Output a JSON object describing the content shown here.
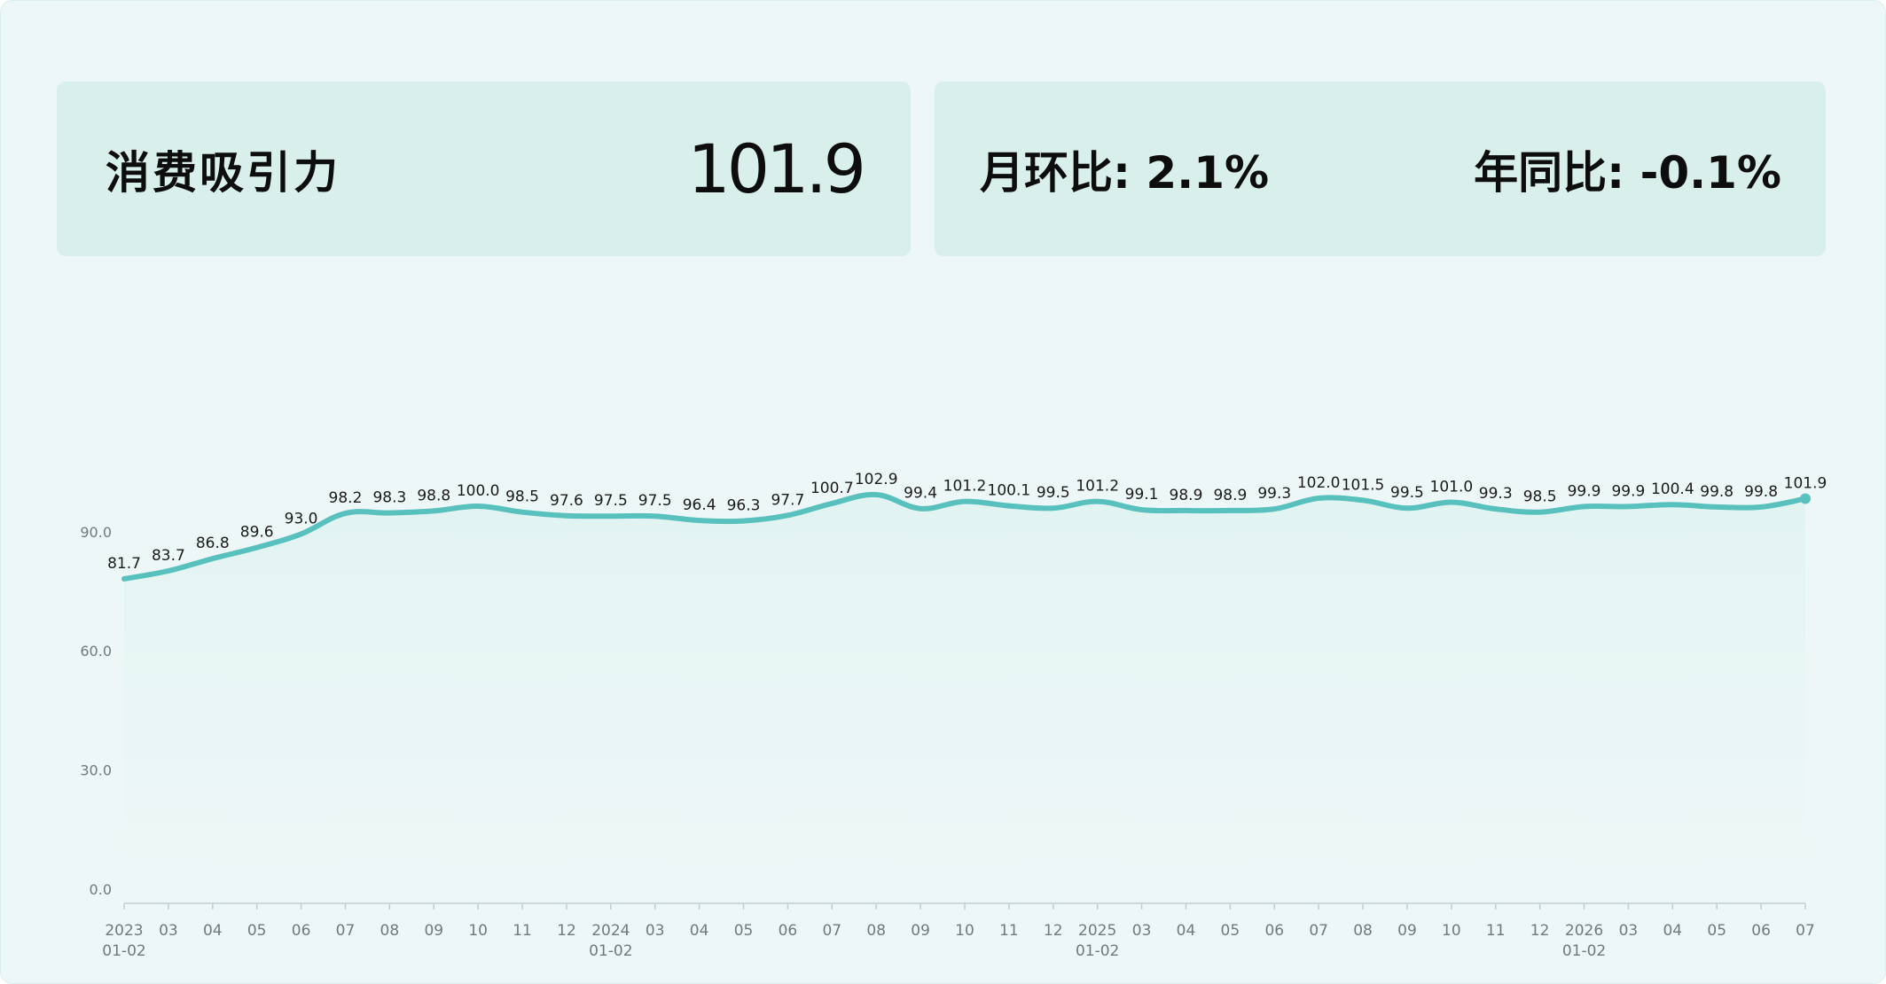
{
  "summary": {
    "label": "消费吸引力",
    "value": "101.9",
    "mom_label": "月环比:",
    "mom_value": "2.1%",
    "yoy_label": "年同比:",
    "yoy_value": "-0.1%"
  },
  "colors": {
    "background": "#eef7f7",
    "card": "#d8efec",
    "line": "#58c1be",
    "area": "#e1f4f2",
    "axis": "#bfcfcf",
    "tick_text": "#6f7a7a",
    "label_text": "#1a1a1a"
  },
  "chart_data": {
    "type": "area",
    "title": "",
    "xlabel": "",
    "ylabel": "",
    "ylim": [
      0,
      100
    ],
    "yticks": [
      "0.0",
      "30.0",
      "60.0",
      "90.0"
    ],
    "grid": false,
    "legend": "none",
    "x": [
      "2023-01-02",
      "2023-03",
      "2023-04",
      "2023-05",
      "2023-06",
      "2023-07",
      "2023-08",
      "2023-09",
      "2023-10",
      "2023-11",
      "2023-12",
      "2024-01-02",
      "2024-03",
      "2024-04",
      "2024-05",
      "2024-06",
      "2024-07",
      "2024-08",
      "2024-09",
      "2024-10",
      "2024-11",
      "2024-12",
      "2025-01-02",
      "2025-03",
      "2025-04",
      "2025-05",
      "2025-06",
      "2025-07",
      "2025-08",
      "2025-09",
      "2025-10",
      "2025-11",
      "2025-12",
      "2026-01-02",
      "2026-03",
      "2026-04",
      "2026-05",
      "2026-06",
      "2026-07"
    ],
    "xtick_labels": [
      [
        "2023",
        "01-02"
      ],
      [
        "03"
      ],
      [
        "04"
      ],
      [
        "05"
      ],
      [
        "06"
      ],
      [
        "07"
      ],
      [
        "08"
      ],
      [
        "09"
      ],
      [
        "10"
      ],
      [
        "11"
      ],
      [
        "12"
      ],
      [
        "2024",
        "01-02"
      ],
      [
        "03"
      ],
      [
        "04"
      ],
      [
        "05"
      ],
      [
        "06"
      ],
      [
        "07"
      ],
      [
        "08"
      ],
      [
        "09"
      ],
      [
        "10"
      ],
      [
        "11"
      ],
      [
        "12"
      ],
      [
        "2025",
        "01-02"
      ],
      [
        "03"
      ],
      [
        "04"
      ],
      [
        "05"
      ],
      [
        "06"
      ],
      [
        "07"
      ],
      [
        "08"
      ],
      [
        "09"
      ],
      [
        "10"
      ],
      [
        "11"
      ],
      [
        "12"
      ],
      [
        "2026",
        "01-02"
      ],
      [
        "03"
      ],
      [
        "04"
      ],
      [
        "05"
      ],
      [
        "06"
      ],
      [
        "07"
      ]
    ],
    "series": [
      {
        "values": [
          81.7,
          83.7,
          86.8,
          89.6,
          93.0,
          98.2,
          98.3,
          98.8,
          100.0,
          98.5,
          97.6,
          97.5,
          97.5,
          96.4,
          96.3,
          97.7,
          100.7,
          102.9,
          99.4,
          101.2,
          100.1,
          99.5,
          101.2,
          99.1,
          98.9,
          98.9,
          99.3,
          102.0,
          101.5,
          99.5,
          101.0,
          99.3,
          98.5,
          99.9,
          99.9,
          100.4,
          99.8,
          99.8,
          101.9
        ],
        "labels": [
          "81.7",
          "83.7",
          "86.8",
          "89.6",
          "93.0",
          "98.2",
          "98.3",
          "98.8",
          "100.0",
          "98.5",
          "97.6",
          "97.5",
          "97.5",
          "96.4",
          "96.3",
          "97.7",
          "100.7",
          "102.9",
          "99.4",
          "101.2",
          "100.1",
          "99.5",
          "101.2",
          "99.1",
          "98.9",
          "98.9",
          "99.3",
          "102.0",
          "101.5",
          "99.5",
          "101.0",
          "99.3",
          "98.5",
          "99.9",
          "99.9",
          "100.4",
          "99.8",
          "99.8",
          "101.9"
        ]
      }
    ]
  }
}
